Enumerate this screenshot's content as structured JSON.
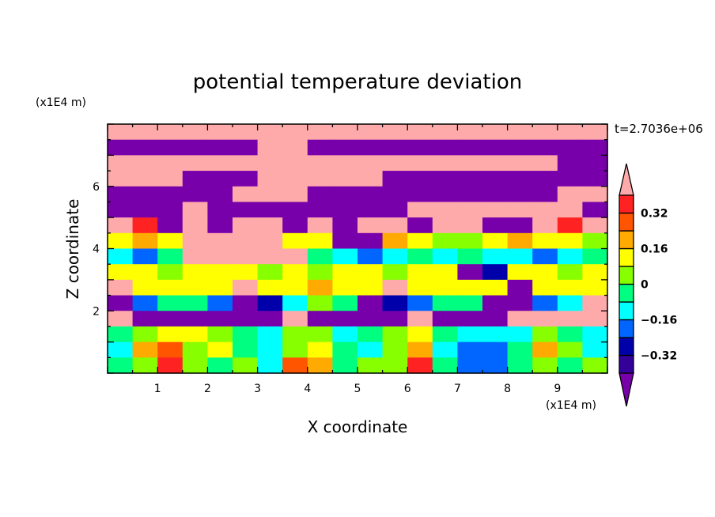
{
  "chart_data": {
    "type": "heatmap",
    "title": "potential temperature deviation",
    "xlabel": "X coordinate",
    "ylabel": "Z coordinate",
    "x_unit": "(x1E4 m)",
    "y_unit": "(x1E4 m)",
    "time_label": "t=2.7036e+06",
    "xlim": [
      0,
      10
    ],
    "ylim": [
      0,
      8
    ],
    "x_ticks": [
      1,
      2,
      3,
      4,
      5,
      6,
      7,
      8,
      9
    ],
    "y_ticks": [
      2,
      4,
      6
    ],
    "grid": false,
    "colorbar": {
      "levels": [
        -0.4,
        -0.32,
        -0.24,
        -0.16,
        -0.08,
        0,
        0.08,
        0.16,
        0.24,
        0.32,
        0.4
      ],
      "colors": [
        "#330099",
        "#0000aa",
        "#0066ff",
        "#00ffff",
        "#00ff80",
        "#88ff00",
        "#ffff00",
        "#ffaa00",
        "#ff5500",
        "#ff2222"
      ],
      "under_color": "#7700aa",
      "over_color": "#ffaaaa",
      "tick_labels": [
        "0.32",
        "0.16",
        "0",
        "-0.16",
        "-0.32"
      ],
      "tick_values": [
        0.32,
        0.16,
        0,
        -0.16,
        -0.32
      ],
      "extend": "both"
    },
    "grid_note_rows_top_to_bottom": "z centers 7.75 to 0.25 step 0.5; x centers 0.25 to 9.75 step 0.5",
    "values": [
      [
        0.45,
        0.45,
        0.45,
        0.45,
        0.45,
        0.45,
        0.45,
        0.45,
        0.45,
        0.45,
        0.45,
        0.45,
        0.45,
        0.45,
        0.45,
        0.45,
        0.45,
        0.45,
        0.45,
        0.45
      ],
      [
        -0.45,
        -0.45,
        -0.45,
        -0.45,
        -0.45,
        -0.45,
        0.45,
        0.45,
        -0.45,
        -0.45,
        -0.45,
        -0.45,
        -0.45,
        -0.45,
        -0.45,
        -0.45,
        -0.45,
        -0.45,
        -0.45,
        -0.45
      ],
      [
        0.45,
        0.45,
        0.45,
        0.45,
        0.45,
        0.45,
        0.45,
        0.45,
        0.45,
        0.45,
        0.45,
        0.45,
        0.45,
        0.45,
        0.45,
        0.45,
        0.45,
        0.45,
        -0.45,
        -0.45
      ],
      [
        0.45,
        0.45,
        0.45,
        -0.45,
        -0.45,
        -0.45,
        0.45,
        0.45,
        0.45,
        0.45,
        0.45,
        -0.45,
        -0.45,
        -0.45,
        -0.45,
        -0.45,
        -0.45,
        -0.45,
        -0.45,
        -0.45
      ],
      [
        -0.45,
        -0.45,
        -0.45,
        -0.45,
        -0.45,
        0.45,
        0.45,
        0.45,
        -0.45,
        -0.45,
        -0.45,
        -0.45,
        -0.45,
        -0.45,
        -0.45,
        -0.45,
        -0.45,
        -0.45,
        0.45,
        0.45
      ],
      [
        -0.45,
        -0.45,
        -0.45,
        0.45,
        -0.45,
        -0.45,
        -0.45,
        -0.45,
        -0.45,
        -0.45,
        -0.45,
        -0.45,
        0.45,
        0.45,
        0.45,
        0.45,
        0.45,
        0.45,
        0.45,
        -0.45
      ],
      [
        0.45,
        0.36,
        -0.45,
        0.45,
        -0.45,
        0.45,
        0.45,
        -0.45,
        0.45,
        -0.45,
        0.45,
        0.45,
        -0.45,
        0.45,
        0.45,
        -0.45,
        -0.45,
        0.45,
        0.36,
        0.45
      ],
      [
        0.12,
        0.2,
        0.12,
        0.45,
        0.45,
        0.45,
        0.45,
        0.12,
        0.12,
        -0.45,
        -0.45,
        0.2,
        0.12,
        0.04,
        0.04,
        0.12,
        0.2,
        0.12,
        0.12,
        0.04
      ],
      [
        -0.12,
        -0.2,
        -0.04,
        0.45,
        0.45,
        0.45,
        0.45,
        0.45,
        -0.04,
        -0.12,
        -0.2,
        -0.12,
        -0.04,
        -0.12,
        -0.04,
        -0.12,
        -0.12,
        -0.2,
        -0.12,
        -0.04
      ],
      [
        0.12,
        0.12,
        0.04,
        0.12,
        0.12,
        0.12,
        0.04,
        0.12,
        0.04,
        0.12,
        0.12,
        0.04,
        0.12,
        0.12,
        -0.45,
        -0.28,
        0.12,
        0.12,
        0.04,
        0.12
      ],
      [
        0.45,
        0.12,
        0.12,
        0.12,
        0.12,
        0.45,
        0.12,
        0.12,
        0.2,
        0.12,
        0.12,
        0.45,
        0.12,
        0.12,
        0.12,
        0.12,
        -0.45,
        0.12,
        0.12,
        0.12
      ],
      [
        -0.45,
        -0.2,
        -0.04,
        -0.04,
        -0.2,
        -0.45,
        -0.28,
        -0.12,
        0.04,
        -0.04,
        -0.45,
        -0.28,
        -0.2,
        -0.04,
        -0.04,
        -0.45,
        -0.45,
        -0.2,
        -0.12,
        0.45
      ],
      [
        0.45,
        -0.45,
        -0.45,
        -0.45,
        -0.45,
        -0.45,
        -0.45,
        0.45,
        -0.45,
        -0.45,
        -0.45,
        -0.45,
        0.45,
        -0.45,
        -0.45,
        -0.45,
        0.45,
        0.45,
        0.45,
        0.45
      ],
      [
        -0.04,
        0.04,
        0.12,
        0.12,
        0.04,
        -0.04,
        -0.12,
        0.04,
        0.04,
        -0.12,
        -0.04,
        0.04,
        0.12,
        -0.04,
        -0.12,
        -0.12,
        -0.12,
        0.04,
        -0.04,
        -0.12
      ],
      [
        -0.12,
        0.2,
        0.28,
        0.04,
        0.12,
        -0.04,
        -0.12,
        0.04,
        0.12,
        -0.04,
        -0.12,
        0.04,
        0.2,
        -0.12,
        -0.2,
        -0.2,
        -0.04,
        0.2,
        0.04,
        -0.12
      ],
      [
        -0.04,
        0.04,
        0.36,
        0.04,
        -0.04,
        0.04,
        -0.12,
        0.28,
        0.2,
        -0.04,
        0.04,
        0.04,
        0.36,
        -0.04,
        -0.2,
        -0.2,
        -0.04,
        0.04,
        -0.04,
        0.04
      ]
    ]
  }
}
